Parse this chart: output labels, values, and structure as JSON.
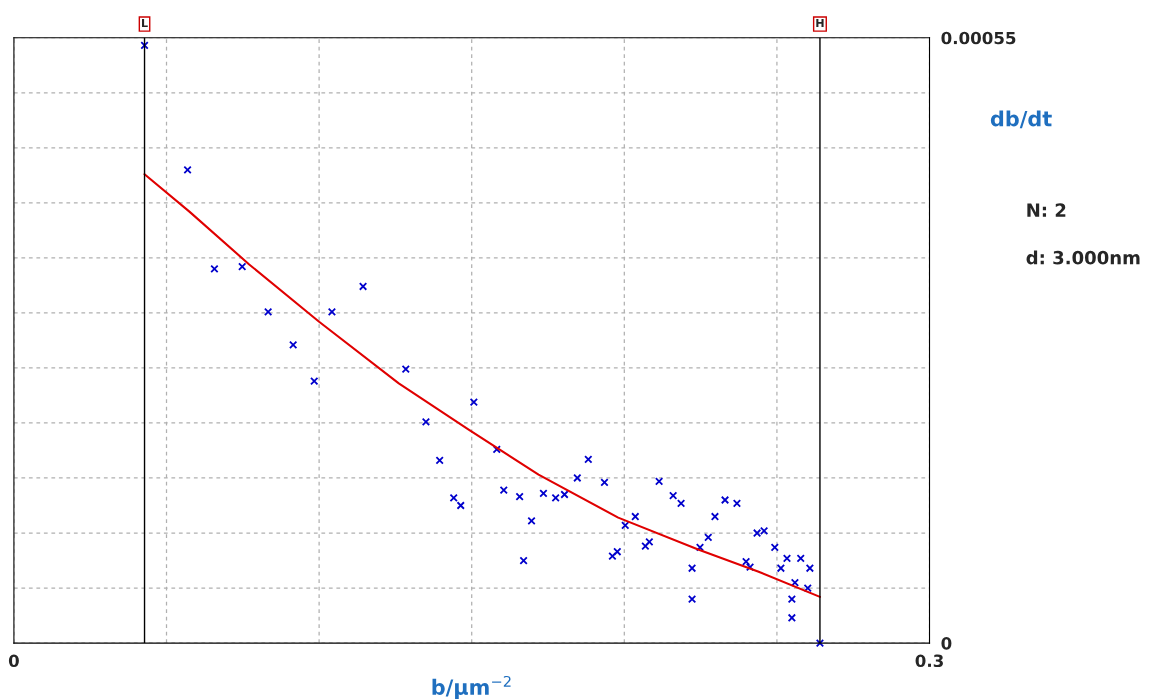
{
  "chart_data": {
    "type": "scatter",
    "xlabel": "b/μm$^{−2}$",
    "ylabel": "db/dt",
    "xlim": [
      0,
      0.3
    ],
    "ylim": [
      0,
      0.00055
    ],
    "xticks": [
      0,
      {
        "value": 0.05,
        "label": null
      },
      {
        "value": 0.1,
        "label": null
      },
      {
        "value": 0.15,
        "label": null
      },
      {
        "value": 0.2,
        "label": null
      },
      {
        "value": 0.25,
        "label": null
      },
      0.3
    ],
    "yticks": [
      0,
      {
        "value": 5e-05,
        "label": null
      },
      {
        "value": 0.0001,
        "label": null
      },
      {
        "value": 0.00015,
        "label": null
      },
      {
        "value": 0.0002,
        "label": null
      },
      {
        "value": 0.00025,
        "label": null
      },
      {
        "value": 0.0003,
        "label": null
      },
      {
        "value": 0.00035,
        "label": null
      },
      {
        "value": 0.0004,
        "label": null
      },
      {
        "value": 0.00045,
        "label": null
      },
      {
        "value": 0.0005,
        "label": null
      },
      0.00055
    ],
    "grid": true,
    "marker": "cross",
    "series": [
      {
        "color": "#0000cc",
        "x": [
          0.0428,
          0.0569,
          0.0657,
          0.0748,
          0.0833,
          0.0915,
          0.0984,
          0.1042,
          0.1144,
          0.1284,
          0.135,
          0.1395,
          0.1441,
          0.1464,
          0.1507,
          0.1582,
          0.1605,
          0.1657,
          0.167,
          0.1696,
          0.1735,
          0.1775,
          0.1804,
          0.1846,
          0.1882,
          0.1935,
          0.1961,
          0.1977,
          0.2003,
          0.2036,
          0.2069,
          0.2082,
          0.2114,
          0.216,
          0.2186,
          0.2222,
          0.2222,
          0.2248,
          0.2275,
          0.2297,
          0.233,
          0.2369,
          0.2399,
          0.2412,
          0.2435,
          0.2458,
          0.2493,
          0.2513,
          0.2533,
          0.2549,
          0.2549,
          0.2559,
          0.2578,
          0.2601,
          0.2608,
          0.2641
        ],
        "values": [
          0.000543,
          0.00043,
          0.00034,
          0.000342,
          0.000301,
          0.000271,
          0.000238,
          0.000301,
          0.000324,
          0.000249,
          0.000201,
          0.000166,
          0.000132,
          0.000125,
          0.000219,
          0.000176,
          0.000139,
          0.000133,
          7.5e-05,
          0.000111,
          0.000136,
          0.000132,
          0.000135,
          0.00015,
          0.000167,
          0.000146,
          7.9e-05,
          8.3e-05,
          0.000107,
          0.000115,
          8.8e-05,
          9.2e-05,
          0.000147,
          0.000134,
          0.000127,
          6.8e-05,
          4e-05,
          8.7e-05,
          9.6e-05,
          0.000115,
          0.00013,
          0.000127,
          7.4e-05,
          6.9e-05,
          0.0001,
          0.000102,
          8.7e-05,
          6.8e-05,
          7.7e-05,
          4e-05,
          2.3e-05,
          5.5e-05,
          7.7e-05,
          5e-05,
          6.8e-05,
          0
        ]
      },
      {
        "type": "line",
        "color": "#e00000",
        "marker": "none",
        "line_style": "solid",
        "x": [
          0.0428,
          0.0575,
          0.0771,
          0.1,
          0.1261,
          0.149,
          0.1719,
          0.198,
          0.2242,
          0.2438,
          0.2641
        ],
        "values": [
          0.000426,
          0.000392,
          0.000344,
          0.000292,
          0.000236,
          0.000194,
          0.000153,
          0.000114,
          8.5e-05,
          6.5e-05,
          4.2e-05
        ]
      }
    ],
    "ref_lines": [
      {
        "axis": "x",
        "value": 0.0428,
        "label": "L",
        "color": "#000000"
      },
      {
        "axis": "x",
        "value": 0.2641,
        "label": "H",
        "color": "#000000"
      }
    ],
    "annotations": [
      "N: 2",
      "d: 3.000nm"
    ]
  }
}
